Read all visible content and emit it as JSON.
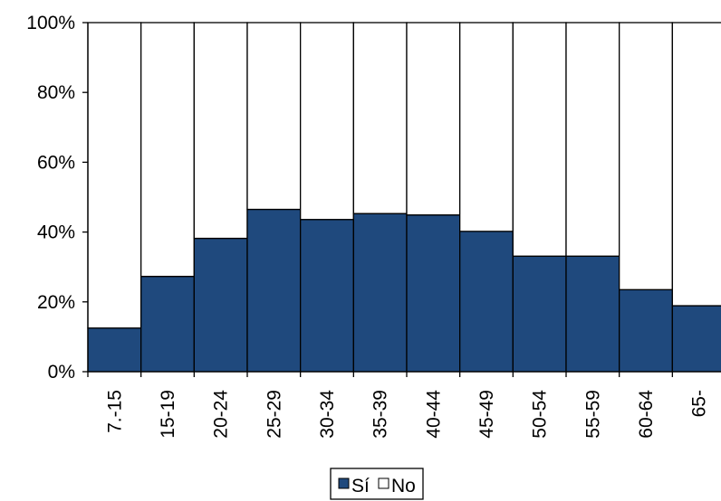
{
  "chart_data": {
    "type": "bar",
    "stacked": true,
    "percent": true,
    "categories": [
      "7.-15",
      "15-19",
      "20-24",
      "25-29",
      "30-34",
      "35-39",
      "40-44",
      "45-49",
      "50-54",
      "55-59",
      "60-64",
      "65-"
    ],
    "series": [
      {
        "name": "Sí",
        "color": "#1f497d",
        "values": [
          12.5,
          27.3,
          38.2,
          46.5,
          43.6,
          45.3,
          44.9,
          40.2,
          33.1,
          33.1,
          23.5,
          18.9
        ]
      },
      {
        "name": "No",
        "color": "#ffffff",
        "values": [
          87.5,
          72.7,
          61.8,
          53.5,
          56.4,
          54.7,
          55.1,
          59.8,
          66.9,
          66.9,
          76.5,
          81.1
        ]
      }
    ],
    "ylim": [
      0,
      100
    ],
    "yticks": [
      "0%",
      "20%",
      "40%",
      "60%",
      "80%",
      "100%"
    ],
    "grid": false,
    "legend": "bottom-center"
  }
}
